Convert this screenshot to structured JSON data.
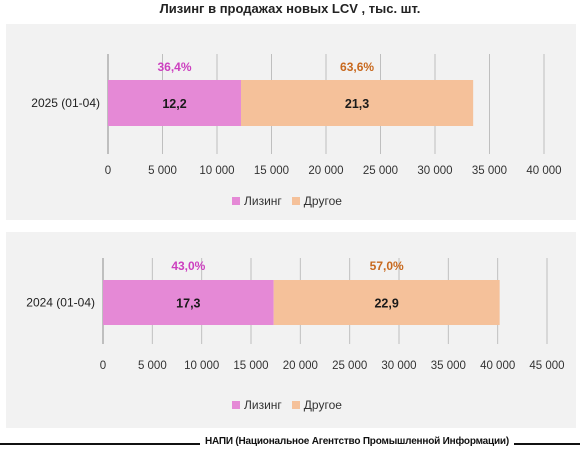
{
  "title": "Лизинг в продажах новых LCV , тыс. шт.",
  "footer": "НАПИ (Национальное Агентство Промышленной Информации)",
  "colors": {
    "leasing": "#e589d6",
    "other": "#f5c19a",
    "leasing_pct": "#cc3fbf",
    "other_pct": "#c8691e",
    "background": "#f2f2f2",
    "grid": "#bfbfbf"
  },
  "legend": {
    "leasing": "Лизинг",
    "other": "Другое"
  },
  "chart_data": [
    {
      "type": "bar",
      "orientation": "horizontal",
      "stacked": true,
      "categories": [
        "2025 (01-04)"
      ],
      "series": [
        {
          "name": "Лизинг",
          "values": [
            12200
          ],
          "value_label": "12,2",
          "share_label": "36,4%"
        },
        {
          "name": "Другое",
          "values": [
            21300
          ],
          "value_label": "21,3",
          "share_label": "63,6%"
        }
      ],
      "xlim": [
        0,
        40000
      ],
      "ticks": [
        "0",
        "5 000",
        "10 000",
        "15 000",
        "20 000",
        "25 000",
        "30 000",
        "35 000",
        "40 000"
      ],
      "grid": true,
      "legend_position": "bottom"
    },
    {
      "type": "bar",
      "orientation": "horizontal",
      "stacked": true,
      "categories": [
        "2024 (01-04)"
      ],
      "series": [
        {
          "name": "Лизинг",
          "values": [
            17300
          ],
          "value_label": "17,3",
          "share_label": "43,0%"
        },
        {
          "name": "Другое",
          "values": [
            22900
          ],
          "value_label": "22,9",
          "share_label": "57,0%"
        }
      ],
      "xlim": [
        0,
        45000
      ],
      "ticks": [
        "0",
        "5 000",
        "10 000",
        "15 000",
        "20 000",
        "25 000",
        "30 000",
        "35 000",
        "40 000",
        "45 000"
      ],
      "grid": true,
      "legend_position": "bottom"
    }
  ]
}
